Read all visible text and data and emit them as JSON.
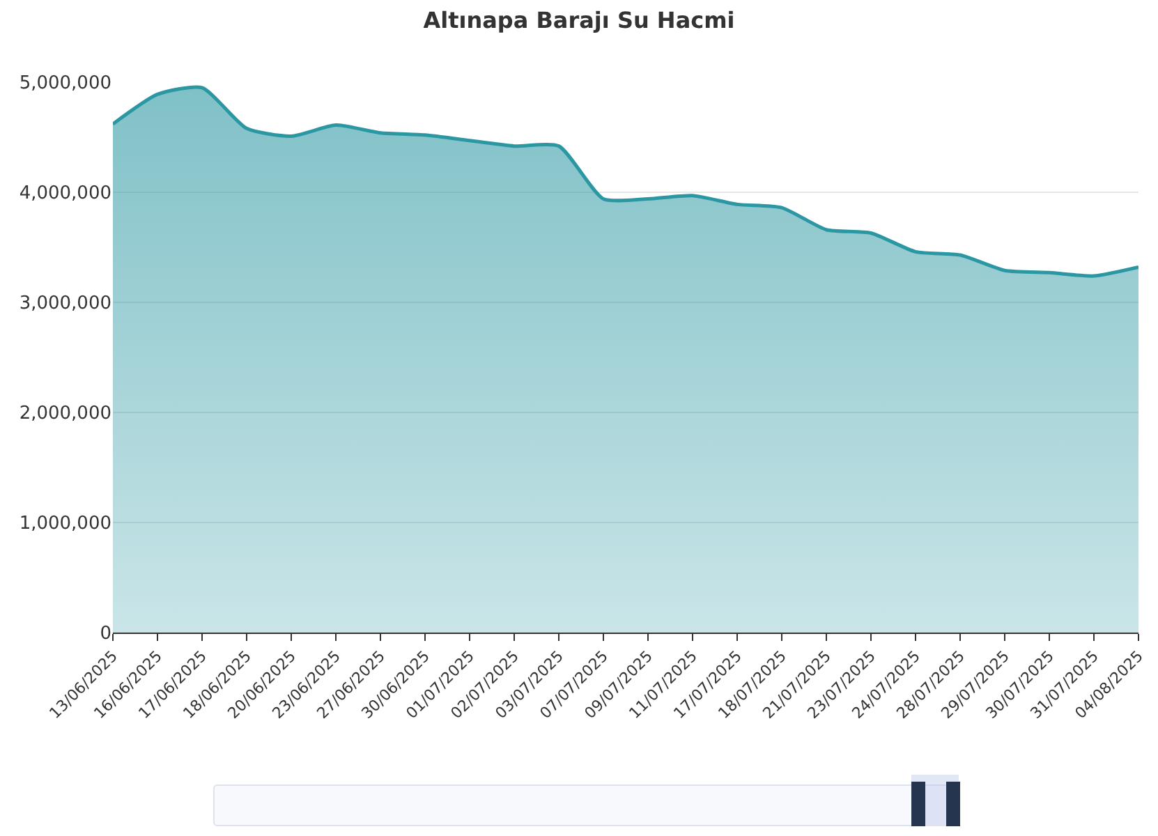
{
  "chart_data": {
    "type": "area",
    "title": "Altınapa Barajı Su Hacmi",
    "categories": [
      "13/06/2025",
      "16/06/2025",
      "17/06/2025",
      "18/06/2025",
      "20/06/2025",
      "23/06/2025",
      "27/06/2025",
      "30/06/2025",
      "01/07/2025",
      "02/07/2025",
      "03/07/2025",
      "07/07/2025",
      "09/07/2025",
      "11/07/2025",
      "17/07/2025",
      "18/07/2025",
      "21/07/2025",
      "23/07/2025",
      "24/07/2025",
      "28/07/2025",
      "29/07/2025",
      "30/07/2025",
      "31/07/2025",
      "04/08/2025"
    ],
    "series": [
      {
        "color": "#2a97a2",
        "values": [
          4620000,
          4890000,
          4950000,
          4580000,
          4510000,
          4610000,
          4540000,
          4520000,
          4470000,
          4420000,
          4420000,
          3940000,
          3940000,
          3970000,
          3890000,
          3860000,
          3660000,
          3630000,
          3460000,
          3430000,
          3290000,
          3270000,
          3240000,
          3320000
        ]
      }
    ],
    "ylim": [
      0,
      5000000
    ],
    "yticks": [
      {
        "value": 0,
        "label": "0"
      },
      {
        "value": 1000000,
        "label": "1,000,000"
      },
      {
        "value": 2000000,
        "label": "2,000,000"
      },
      {
        "value": 3000000,
        "label": "3,000,000"
      },
      {
        "value": 4000000,
        "label": "4,000,000"
      },
      {
        "value": 5000000,
        "label": "5,000,000"
      }
    ],
    "grid": "y",
    "marker": "none",
    "line_style": "solid"
  }
}
